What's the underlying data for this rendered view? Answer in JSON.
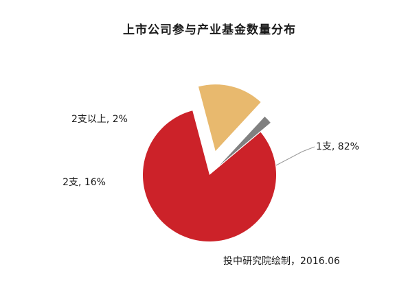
{
  "chart_data": {
    "type": "pie",
    "title": "上市公司参与产业基金数量分布",
    "slices": [
      {
        "name": "1支",
        "label": "1支, 82%",
        "value": 82,
        "color": "#cc2229"
      },
      {
        "name": "2支",
        "label": "2支, 16%",
        "value": 16,
        "color": "#e8b96e"
      },
      {
        "name": "2支以上",
        "label": "2支以上, 2%",
        "value": 2,
        "color": "#808080"
      }
    ],
    "legend": "none",
    "exploded": true
  },
  "source_note": "投中研究院绘制，2016.06"
}
